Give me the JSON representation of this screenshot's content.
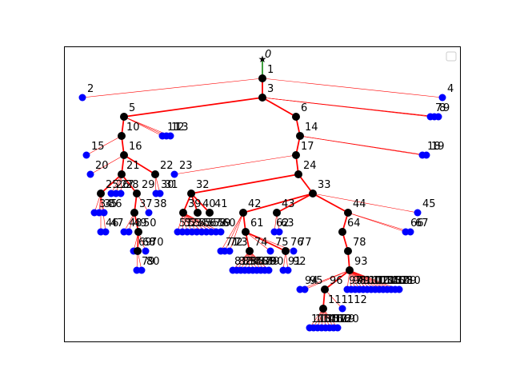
{
  "figure": {
    "colors": {
      "edge": "#ff0000",
      "root_edge": "#008000",
      "internal_node": "#000000",
      "leaf_node": "#0000ff",
      "frame": "#000000"
    },
    "legend": {
      "position": "top-right",
      "entries": [
        ""
      ]
    }
  },
  "chart_data": {
    "type": "tree",
    "layout": "hierarchical top-down",
    "root_label": "0",
    "root_marker": "star",
    "internal_nodes": [
      {
        "label": "1",
        "parent": "0"
      },
      {
        "label": "3",
        "parent": "1"
      },
      {
        "label": "5",
        "parent": "3"
      },
      {
        "label": "6",
        "parent": "3"
      },
      {
        "label": "10",
        "parent": "5"
      },
      {
        "label": "14",
        "parent": "6"
      },
      {
        "label": "16",
        "parent": "10"
      },
      {
        "label": "17",
        "parent": "14"
      },
      {
        "label": "21",
        "parent": "16"
      },
      {
        "label": "22",
        "parent": "16"
      },
      {
        "label": "24",
        "parent": "17"
      },
      {
        "label": "25",
        "parent": "21"
      },
      {
        "label": "29",
        "parent": "21"
      },
      {
        "label": "32",
        "parent": "24"
      },
      {
        "label": "33",
        "parent": "24"
      },
      {
        "label": "37",
        "parent": "29"
      },
      {
        "label": "39",
        "parent": "32"
      },
      {
        "label": "40",
        "parent": "32"
      },
      {
        "label": "41",
        "parent": "32"
      },
      {
        "label": "42",
        "parent": "33"
      },
      {
        "label": "43",
        "parent": "33"
      },
      {
        "label": "44",
        "parent": "33"
      },
      {
        "label": "50",
        "parent": "37"
      },
      {
        "label": "61",
        "parent": "42"
      },
      {
        "label": "64",
        "parent": "44"
      },
      {
        "label": "68",
        "parent": "50"
      },
      {
        "label": "74",
        "parent": "61"
      },
      {
        "label": "76",
        "parent": "61"
      },
      {
        "label": "78",
        "parent": "64"
      },
      {
        "label": "93",
        "parent": "78"
      },
      {
        "label": "96",
        "parent": "93"
      },
      {
        "label": "111",
        "parent": "96"
      }
    ],
    "labeled_leaves": [
      {
        "label": "2",
        "parent": "1"
      },
      {
        "label": "4",
        "parent": "1"
      },
      {
        "label": "7",
        "parent": "3"
      },
      {
        "label": "8",
        "parent": "3"
      },
      {
        "label": "9",
        "parent": "3"
      },
      {
        "label": "11",
        "parent": "5"
      },
      {
        "label": "12",
        "parent": "5"
      },
      {
        "label": "13",
        "parent": "5"
      },
      {
        "label": "15",
        "parent": "10"
      },
      {
        "label": "18",
        "parent": "14"
      },
      {
        "label": "19",
        "parent": "14"
      },
      {
        "label": "20",
        "parent": "16"
      },
      {
        "label": "23",
        "parent": "17"
      },
      {
        "label": "26",
        "parent": "21"
      },
      {
        "label": "27",
        "parent": "21"
      },
      {
        "label": "28",
        "parent": "21"
      },
      {
        "label": "30",
        "parent": "22"
      },
      {
        "label": "31",
        "parent": "22"
      },
      {
        "label": "34",
        "parent": "25"
      },
      {
        "label": "35",
        "parent": "25"
      },
      {
        "label": "36",
        "parent": "25"
      },
      {
        "label": "38",
        "parent": "29"
      },
      {
        "label": "45",
        "parent": "33"
      },
      {
        "label": "46",
        "parent": "25"
      },
      {
        "label": "47",
        "parent": "25"
      },
      {
        "label": "48",
        "parent": "37"
      },
      {
        "label": "49",
        "parent": "37"
      },
      {
        "label": "66",
        "parent": "44"
      },
      {
        "label": "67",
        "parent": "44"
      },
      {
        "label": "69",
        "parent": "50"
      },
      {
        "label": "70",
        "parent": "50"
      },
      {
        "label": "71",
        "parent": "42"
      },
      {
        "label": "72",
        "parent": "42"
      },
      {
        "label": "73",
        "parent": "42"
      },
      {
        "label": "75",
        "parent": "61"
      },
      {
        "label": "77",
        "parent": "61"
      },
      {
        "label": "79",
        "parent": "68"
      },
      {
        "label": "80",
        "parent": "68"
      },
      {
        "label": "91",
        "parent": "76"
      },
      {
        "label": "92",
        "parent": "76"
      },
      {
        "label": "94",
        "parent": "93"
      },
      {
        "label": "95",
        "parent": "93"
      },
      {
        "label": "112",
        "parent": "96"
      }
    ],
    "overlapping_labels": [
      {
        "parent": "39",
        "labels": [
          "51",
          "52",
          "53",
          "54",
          "55",
          "56",
          "57",
          "58",
          "59",
          "60"
        ]
      },
      {
        "parent": "43",
        "labels": [
          "62",
          "63"
        ]
      },
      {
        "parent": "74",
        "labels": [
          "81",
          "82",
          "83",
          "84",
          "85",
          "86",
          "87",
          "88",
          "89",
          "90"
        ]
      },
      {
        "parent": "93",
        "labels": [
          "97",
          "98",
          "99",
          "100",
          "101",
          "102",
          "103",
          "104",
          "105",
          "106",
          "107",
          "108",
          "109",
          "110"
        ]
      },
      {
        "parent": "111",
        "labels": [
          "113",
          "114",
          "115",
          "116",
          "117",
          "118",
          "119",
          "120"
        ]
      }
    ],
    "grid": false
  }
}
